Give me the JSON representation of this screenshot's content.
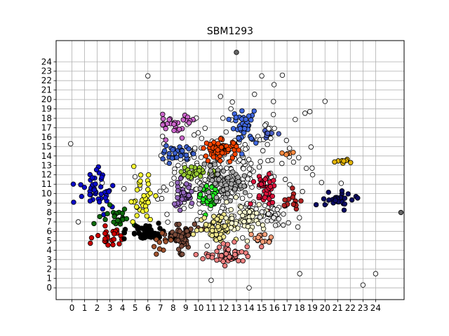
{
  "chart_data": {
    "type": "scatter",
    "title": "SBM1293",
    "xlabel": "",
    "ylabel": "",
    "xlim": [
      -1.25,
      26.25
    ],
    "ylim": [
      -1.25,
      26.25
    ],
    "x_ticks": [
      0,
      1,
      2,
      3,
      4,
      5,
      6,
      7,
      8,
      9,
      10,
      11,
      12,
      13,
      14,
      15,
      16,
      17,
      18,
      19,
      20,
      21,
      22,
      23,
      24
    ],
    "y_ticks": [
      0,
      1,
      2,
      3,
      4,
      5,
      6,
      7,
      8,
      9,
      10,
      11,
      12,
      13,
      14,
      15,
      16,
      17,
      18,
      19,
      20,
      21,
      22,
      23,
      24
    ],
    "grid": true,
    "legend": "none",
    "point_edge_color": "#000000",
    "clusters": [
      {
        "color": "#ffffff",
        "center": [
          12.5,
          12.0
        ],
        "spread": [
          6.5,
          6.0
        ],
        "count": 260
      },
      {
        "color": "#0a0ac8",
        "center": [
          2.0,
          10.5
        ],
        "spread": [
          1.5,
          2.0
        ],
        "count": 45
      },
      {
        "color": "#0a0a64",
        "center": [
          21.2,
          9.3
        ],
        "spread": [
          1.3,
          0.8
        ],
        "count": 30
      },
      {
        "color": "#e3b505",
        "center": [
          21.5,
          13.5
        ],
        "spread": [
          0.9,
          0.3
        ],
        "count": 8
      },
      {
        "color": "#0d6b0d",
        "center": [
          3.5,
          7.5
        ],
        "spread": [
          1.2,
          1.3
        ],
        "count": 25
      },
      {
        "color": "#cc0000",
        "center": [
          3.0,
          5.2
        ],
        "spread": [
          1.3,
          1.0
        ],
        "count": 25
      },
      {
        "color": "#ffff33",
        "center": [
          5.5,
          9.5
        ],
        "spread": [
          1.0,
          2.5
        ],
        "count": 35
      },
      {
        "color": "#000000",
        "center": [
          6.0,
          5.8
        ],
        "spread": [
          1.5,
          0.9
        ],
        "count": 55
      },
      {
        "color": "#7b4b3a",
        "center": [
          8.6,
          5.5
        ],
        "spread": [
          1.2,
          1.5
        ],
        "count": 50
      },
      {
        "color": "#9467bd",
        "center": [
          8.8,
          9.7
        ],
        "spread": [
          1.0,
          1.3
        ],
        "count": 45
      },
      {
        "color": "#3b5fcc",
        "center": [
          8.3,
          14.2
        ],
        "spread": [
          1.0,
          0.8
        ],
        "count": 30
      },
      {
        "color": "#cc66cc",
        "center": [
          8.3,
          17.5
        ],
        "spread": [
          1.5,
          1.2
        ],
        "count": 30
      },
      {
        "color": "#99cc33",
        "center": [
          10.0,
          12.2
        ],
        "spread": [
          1.5,
          0.6
        ],
        "count": 30
      },
      {
        "color": "#22ee22",
        "center": [
          10.9,
          9.4
        ],
        "spread": [
          0.7,
          1.3
        ],
        "count": 40
      },
      {
        "color": "#aaaaaa",
        "center": [
          11.8,
          11.0
        ],
        "spread": [
          1.8,
          1.5
        ],
        "count": 70
      },
      {
        "color": "#ff4500",
        "center": [
          11.8,
          14.7
        ],
        "spread": [
          1.3,
          1.0
        ],
        "count": 70
      },
      {
        "color": "#4169e1",
        "center": [
          13.6,
          17.2
        ],
        "spread": [
          1.0,
          1.8
        ],
        "count": 35
      },
      {
        "color": "#4a5fc8",
        "center": [
          15.6,
          16.3
        ],
        "spread": [
          0.7,
          0.4
        ],
        "count": 8
      },
      {
        "color": "#dc143c",
        "center": [
          15.3,
          10.5
        ],
        "spread": [
          1.0,
          1.8
        ],
        "count": 40
      },
      {
        "color": "#f0e68c",
        "center": [
          11.5,
          6.5
        ],
        "spread": [
          1.5,
          1.5
        ],
        "count": 60
      },
      {
        "color": "#fffdd0",
        "center": [
          13.8,
          7.5
        ],
        "spread": [
          1.5,
          1.5
        ],
        "count": 55
      },
      {
        "color": "#f08080",
        "center": [
          12.5,
          3.5
        ],
        "spread": [
          2.0,
          1.0
        ],
        "count": 55
      },
      {
        "color": "#ffa07a",
        "center": [
          15.0,
          5.2
        ],
        "spread": [
          0.8,
          0.6
        ],
        "count": 15
      },
      {
        "color": "#e9e9e9",
        "center": [
          15.8,
          7.5
        ],
        "spread": [
          1.2,
          1.2
        ],
        "count": 25
      },
      {
        "color": "#b22222",
        "center": [
          17.5,
          9.0
        ],
        "spread": [
          0.9,
          1.5
        ],
        "count": 15
      },
      {
        "color": "#ff8c42",
        "center": [
          17.2,
          14.3
        ],
        "spread": [
          0.5,
          0.2
        ],
        "count": 5
      },
      {
        "color": "#a0522d",
        "center": [
          7.2,
          4.5
        ],
        "spread": [
          0.8,
          1.0
        ],
        "count": 10
      }
    ],
    "points": [
      {
        "x": 13.0,
        "y": 25.0,
        "color": "#666666"
      },
      {
        "x": 6.0,
        "y": 22.5,
        "color": "#ffffff"
      },
      {
        "x": 26.0,
        "y": 8.0,
        "color": "#666666"
      },
      {
        "x": 18.0,
        "y": 1.5,
        "color": "#ffffff"
      },
      {
        "x": 23.0,
        "y": 0.3,
        "color": "#ffffff"
      },
      {
        "x": 24.0,
        "y": 1.5,
        "color": "#ffffff"
      },
      {
        "x": 14.0,
        "y": 0.0,
        "color": "#ffffff"
      },
      {
        "x": 11.0,
        "y": 0.8,
        "color": "#ffffff"
      },
      {
        "x": 20.0,
        "y": 19.8,
        "color": "#ffffff"
      },
      {
        "x": 0.5,
        "y": 7.0,
        "color": "#ffffff"
      },
      {
        "x": -0.1,
        "y": 15.3,
        "color": "#ffffff"
      },
      {
        "x": 15.0,
        "y": 22.5,
        "color": "#ffffff"
      }
    ]
  }
}
